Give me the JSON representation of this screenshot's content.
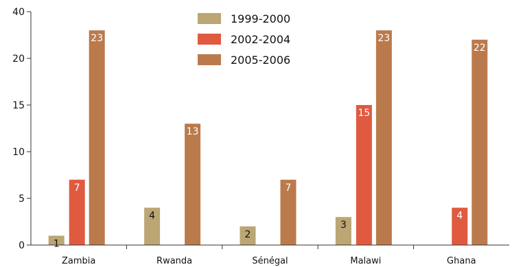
{
  "chart_data": {
    "type": "bar",
    "title": "",
    "xlabel": "",
    "ylabel": "",
    "categories": [
      "Zambia",
      "Rwanda",
      "Sénégal",
      "Malawi",
      "Ghana"
    ],
    "ylim": [
      0,
      40
    ],
    "yticks": [
      "0",
      "5",
      "10",
      "15",
      "20",
      "40"
    ],
    "legend_position": "top-center",
    "series": [
      {
        "name": "1999-2000",
        "color": "#bba674",
        "label_color": "#111111",
        "values": [
          1,
          4,
          2,
          3,
          null
        ],
        "labels": [
          "1",
          "4",
          "2",
          "3",
          ""
        ]
      },
      {
        "name": "2002-2004",
        "color": "#e05a40",
        "label_color": "#ffffff",
        "values": [
          7,
          null,
          null,
          15,
          4
        ],
        "labels": [
          "7",
          "",
          "",
          "15",
          "4"
        ]
      },
      {
        "name": "2005-2006",
        "color": "#bb7a4c",
        "label_color": "#ffffff",
        "values": [
          23,
          13,
          7,
          23,
          22
        ],
        "labels": [
          "23",
          "13",
          "7",
          "23",
          "22"
        ]
      }
    ]
  }
}
